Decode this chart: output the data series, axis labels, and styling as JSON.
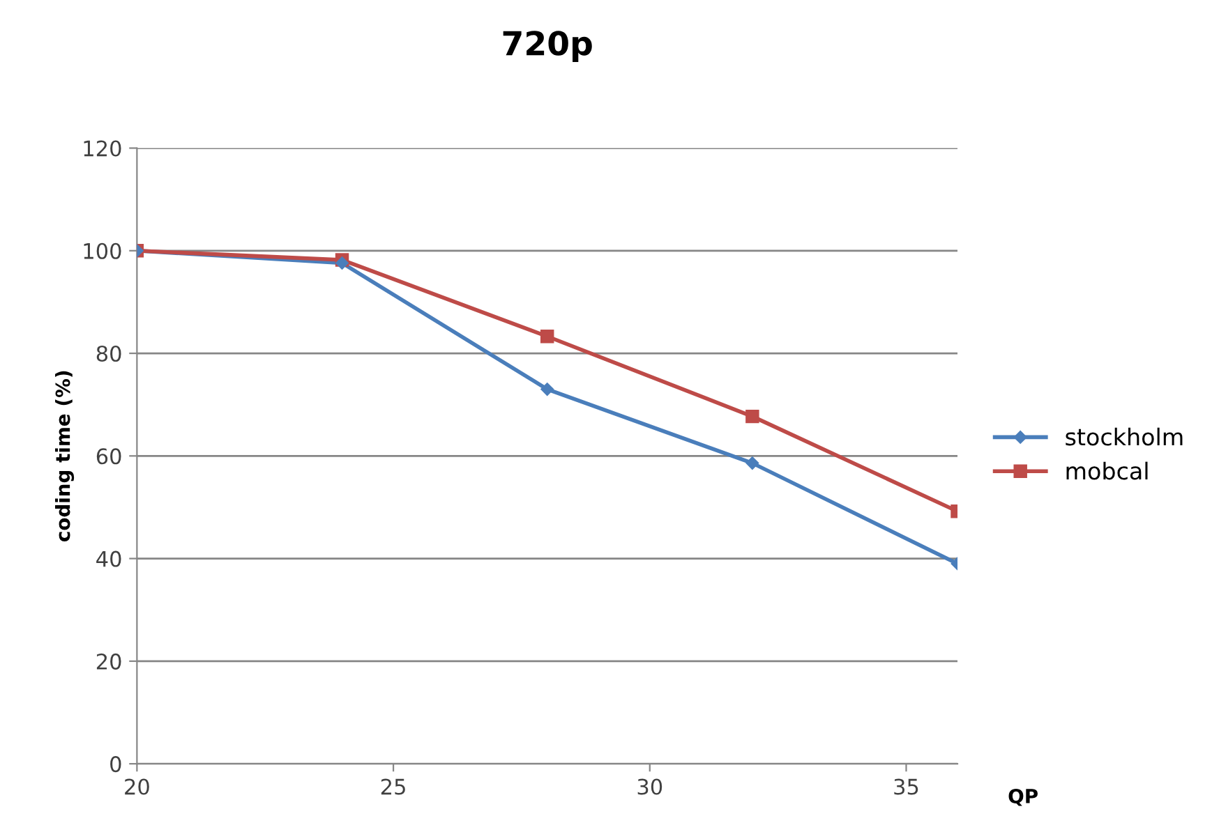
{
  "chart_data": {
    "type": "line",
    "title": "720p",
    "xlabel": "QP",
    "ylabel": "coding time (%)",
    "x": [
      20,
      24,
      28,
      32,
      36
    ],
    "series": [
      {
        "name": "stockholm",
        "color": "#4a7ebb",
        "marker": "diamond",
        "values": [
          100,
          97.6,
          73,
          58.6,
          39
        ]
      },
      {
        "name": "mobcal",
        "color": "#be4b48",
        "marker": "square",
        "values": [
          100,
          98.2,
          83.3,
          67.7,
          49.2
        ]
      }
    ],
    "xlim": [
      20,
      36
    ],
    "xticks": [
      20,
      25,
      30,
      35
    ],
    "ylim": [
      0,
      120
    ],
    "yticks": [
      0,
      20,
      40,
      60,
      80,
      100,
      120
    ],
    "grid": "y",
    "legend": "right",
    "line_style": "solid"
  }
}
